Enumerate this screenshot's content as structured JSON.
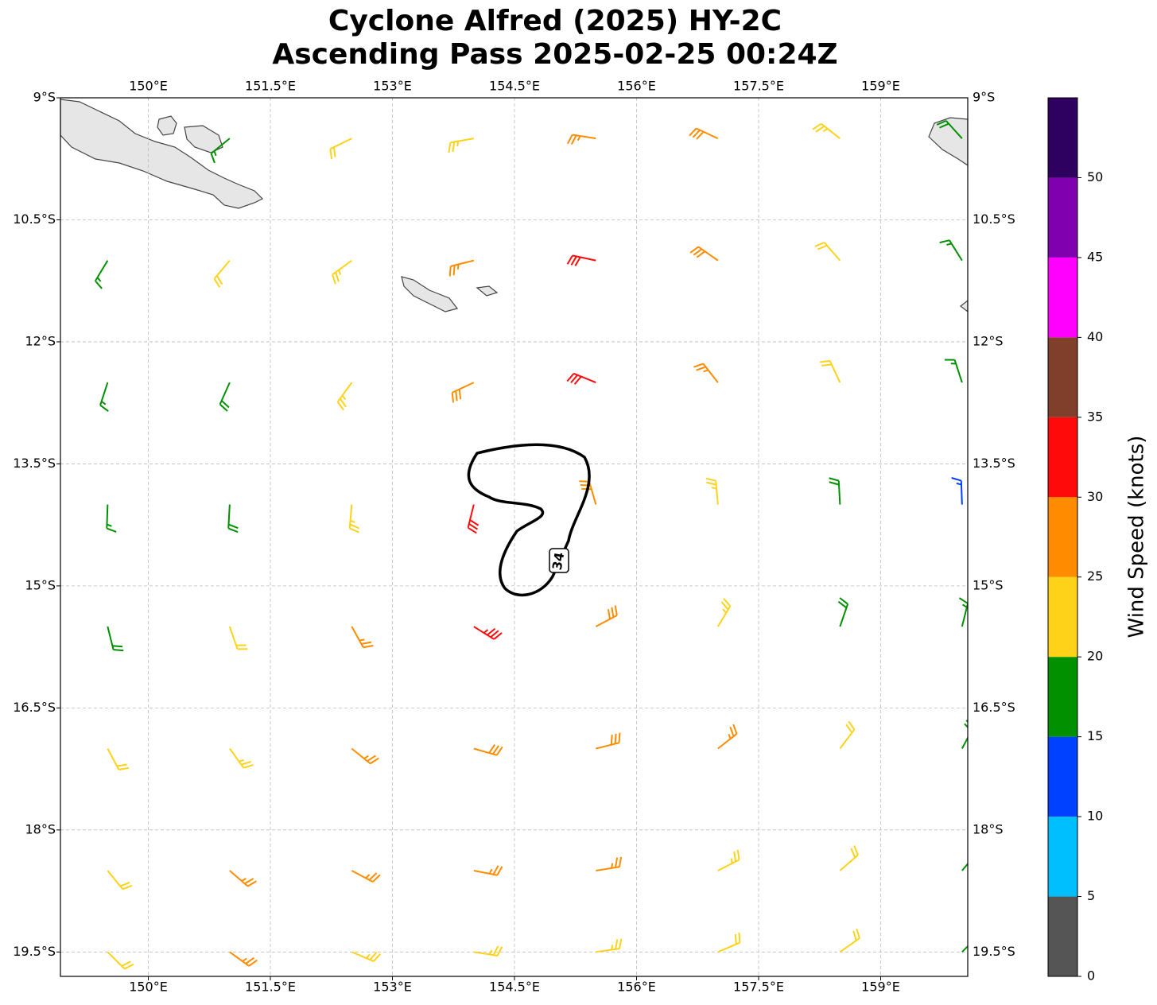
{
  "chart_data": {
    "type": "barbs",
    "title": "Cyclone Alfred (2025) HY-2C",
    "subtitle": "Ascending Pass 2025-02-25 00:24Z",
    "xlim": [
      148.92,
      160.07
    ],
    "ylim": [
      -19.8,
      -9
    ],
    "xticks": [
      {
        "value": 150,
        "label": "150°E"
      },
      {
        "value": 151.5,
        "label": "151.5°E"
      },
      {
        "value": 153,
        "label": "153°E"
      },
      {
        "value": 154.5,
        "label": "154.5°E"
      },
      {
        "value": 156,
        "label": "156°E"
      },
      {
        "value": 157.5,
        "label": "157.5°E"
      },
      {
        "value": 159,
        "label": "159°E"
      }
    ],
    "yticks": [
      {
        "value": -9,
        "label": "9°S"
      },
      {
        "value": -10.5,
        "label": "10.5°S"
      },
      {
        "value": -12,
        "label": "12°S"
      },
      {
        "value": -13.5,
        "label": "13.5°S"
      },
      {
        "value": -15,
        "label": "15°S"
      },
      {
        "value": -16.5,
        "label": "16.5°S"
      },
      {
        "value": -18,
        "label": "18°S"
      },
      {
        "value": -19.5,
        "label": "19.5°S"
      }
    ],
    "grid": true,
    "barbs": {
      "lon": [
        149.5,
        151,
        152.5,
        154,
        155.5,
        157,
        158.5,
        160
      ],
      "lat": [
        -9.5,
        -11,
        -12.5,
        -14,
        -15.5,
        -17,
        -18.5,
        -19.5
      ],
      "speed": [
        [
          null,
          17,
          22,
          24,
          27,
          28,
          23,
          18
        ],
        [
          17,
          21,
          23,
          27,
          30,
          28,
          22,
          17
        ],
        [
          15,
          18,
          23,
          28,
          30,
          27,
          21,
          16
        ],
        [
          17,
          19,
          24,
          32,
          29,
          24,
          19,
          14
        ],
        [
          18,
          21,
          26,
          33,
          29,
          24,
          19,
          17
        ],
        [
          22,
          24,
          26,
          28,
          28,
          26,
          22,
          19
        ],
        [
          22,
          25,
          26,
          26,
          26,
          24,
          22,
          18
        ],
        [
          22,
          25,
          24,
          24,
          24,
          22,
          21,
          19
        ]
      ],
      "direction": [
        [
          null,
          231,
          244,
          260,
          279,
          295,
          308,
          318
        ],
        [
          211,
          220,
          234,
          256,
          282,
          305,
          319,
          328
        ],
        [
          198,
          204,
          216,
          245,
          292,
          322,
          335,
          342
        ],
        [
          182,
          183,
          185,
          194,
          344,
          355,
          357,
          358
        ],
        [
          166,
          161,
          151,
          122,
          62,
          31,
          19,
          14
        ],
        [
          152,
          144,
          129,
          106,
          76,
          52,
          37,
          28
        ],
        [
          141,
          131,
          118,
          101,
          81,
          63,
          49,
          40
        ],
        [
          135,
          126,
          113,
          99,
          82,
          67,
          55,
          45
        ]
      ]
    },
    "contour": {
      "level": 34
    },
    "colorbar": {
      "label": "Wind Speed (knots)",
      "ylim": [
        0,
        55
      ],
      "yticks": [
        0,
        5,
        10,
        15,
        20,
        25,
        30,
        35,
        40,
        45,
        50
      ],
      "colors": [
        "#555555",
        "#00bfff",
        "#0040ff",
        "#009000",
        "#ffd21a",
        "#ff8c00",
        "#ff0a0a",
        "#7f3f2a",
        "#ff00ff",
        "#8000b0",
        "#2e0060"
      ]
    }
  }
}
